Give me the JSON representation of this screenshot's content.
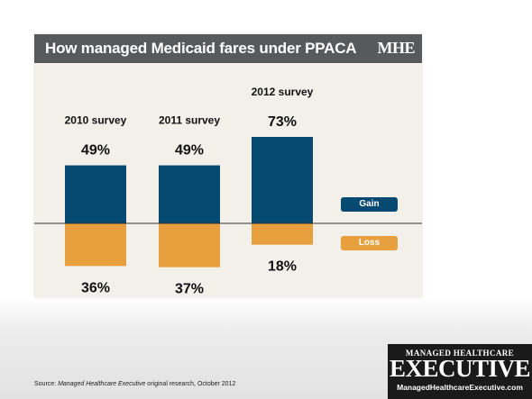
{
  "header": {
    "title": "How managed Medicaid fares under PPACA",
    "logo": "MHE"
  },
  "chart_data": {
    "type": "bar",
    "title": "How managed Medicaid fares under PPACA",
    "categories": [
      "2010 survey",
      "2011 survey",
      "2012 survey"
    ],
    "series": [
      {
        "name": "Gain",
        "values": [
          49,
          49,
          73
        ],
        "labels": [
          "49%",
          "49%",
          "73%"
        ],
        "color": "#064a72"
      },
      {
        "name": "Loss",
        "values": [
          36,
          37,
          18
        ],
        "labels": [
          "36%",
          "37%",
          "18%"
        ],
        "color": "#e8a03e"
      }
    ],
    "loss_direction": "below-baseline",
    "legend": {
      "placement": "right",
      "entries": [
        "Gain",
        "Loss"
      ]
    },
    "grid": false
  },
  "colors": {
    "gain": "#064a72",
    "loss": "#e8a03e",
    "title_bar": "#58595b"
  },
  "footer": {
    "source_prefix": "Source: ",
    "source_italic": "Managed Healthcare Executive",
    "source_suffix": " original research, October 2012"
  },
  "brand": {
    "top": "MANAGED HEALTHCARE",
    "main": "EXECUTIVE",
    "url": "ManagedHealthcareExecutive.com"
  }
}
